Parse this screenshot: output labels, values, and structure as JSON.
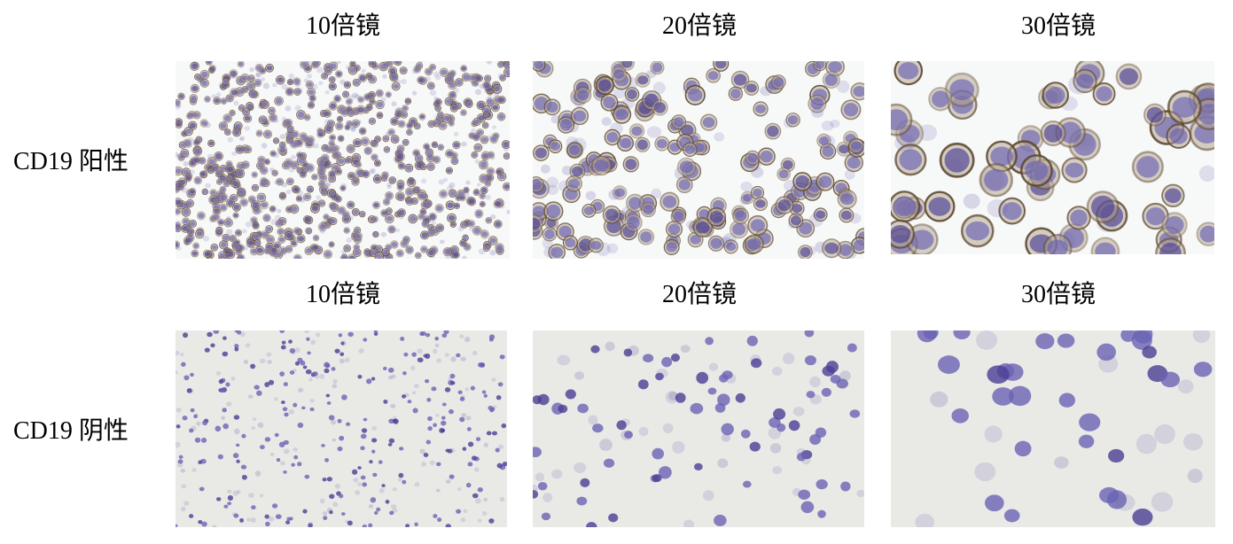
{
  "columns": [
    "10倍镜",
    "20倍镜",
    "30倍镜"
  ],
  "rows": [
    {
      "label": "CD19 阳性",
      "stain": "positive",
      "headers": [
        "10倍镜",
        "20倍镜",
        "30倍镜"
      ]
    },
    {
      "label": "CD19 阴性",
      "stain": "negative",
      "headers": [
        "10倍镜",
        "20倍镜",
        "30倍镜"
      ]
    }
  ],
  "colors": {
    "nucleus": "#6a63b4",
    "nucleus_dark": "#4a3f95",
    "membrane_positive": "#5a4530",
    "cytoplasm_positive": "#b8a88e",
    "background_positive": "#f7f8f8",
    "background_negative": "#e9e9e6"
  }
}
